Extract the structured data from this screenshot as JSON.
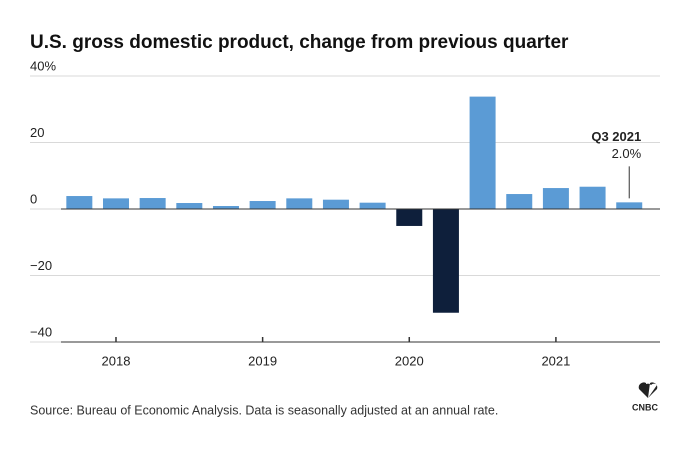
{
  "chart_data": {
    "type": "bar",
    "title": "U.S. gross domestic product, change from previous quarter",
    "categories": [
      null,
      "2018",
      null,
      null,
      null,
      "2019",
      null,
      null,
      null,
      "2020",
      null,
      null,
      null,
      "2021",
      null,
      null
    ],
    "values": [
      3.9,
      3.2,
      3.3,
      1.8,
      0.9,
      2.4,
      3.2,
      2.8,
      1.9,
      -5.1,
      -31.2,
      33.8,
      4.5,
      6.3,
      6.7,
      2.0
    ],
    "value_labels": [
      null,
      null,
      null,
      null,
      null,
      null,
      null,
      null,
      null,
      null,
      null,
      null,
      null,
      null,
      null,
      "2.0%"
    ],
    "annotation": "Q3 2021",
    "color": "#5b9bd5",
    "negative_color": "#0e1f3b",
    "ylim": [
      -40,
      40
    ],
    "yticks": [
      {
        "value": 40,
        "label": "40%"
      },
      20,
      0,
      {
        "value": -20,
        "label": "−20"
      },
      {
        "value": -40,
        "label": "−40"
      }
    ],
    "grid": true,
    "source": "Source: Bureau of Economic Analysis. Data is seasonally adjusted at an annual rate.",
    "logo": "CNBC"
  }
}
